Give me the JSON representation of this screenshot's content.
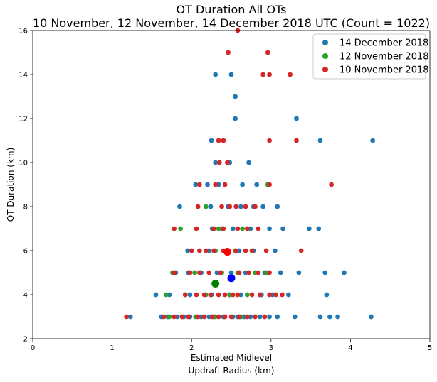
{
  "chart_data": {
    "type": "scatter",
    "title_lines": [
      "OT Duration All OTs",
      "10 November, 12 November, 14 December 2018 UTC (Count = 1022)"
    ],
    "xlabel_lines": [
      "Estimated Midlevel",
      "Updraft Radius (km)"
    ],
    "ylabel": "OT Duration (km)",
    "xlim": [
      0,
      5
    ],
    "ylim": [
      2,
      16
    ],
    "xticks": [
      0,
      1,
      2,
      3,
      4,
      5
    ],
    "yticks": [
      2,
      4,
      6,
      8,
      10,
      12,
      14,
      16
    ],
    "grid": false,
    "legend_placement": "top-right",
    "series": [
      {
        "name": "14 December 2018",
        "color": "#1f77b4",
        "x": [
          1.23,
          1.62,
          1.7,
          1.82,
          1.9,
          1.98,
          2.12,
          2.22,
          2.28,
          2.4,
          2.52,
          2.58,
          2.66,
          2.74,
          2.86,
          2.98,
          3.08,
          3.3,
          3.62,
          3.74,
          3.84,
          4.26,
          1.55,
          1.72,
          1.98,
          2.25,
          2.48,
          2.62,
          2.88,
          3.02,
          3.22,
          3.7,
          1.8,
          1.96,
          2.12,
          2.32,
          2.5,
          2.68,
          2.92,
          3.12,
          3.35,
          3.68,
          3.92,
          1.95,
          2.22,
          2.44,
          2.6,
          2.78,
          3.05,
          2.26,
          2.38,
          2.52,
          2.74,
          2.98,
          3.15,
          3.48,
          3.6,
          1.85,
          2.24,
          2.46,
          2.62,
          2.78,
          2.9,
          3.08,
          2.05,
          2.2,
          2.34,
          2.64,
          2.82,
          2.96,
          2.3,
          2.48,
          2.72,
          2.25,
          2.4,
          3.62,
          4.28,
          2.55,
          3.32,
          2.55,
          2.3,
          2.5
        ],
        "y": [
          3,
          3,
          3,
          3,
          3,
          3,
          3,
          3,
          3,
          3,
          3,
          3,
          3,
          3,
          3,
          3,
          3,
          3,
          3,
          3,
          3,
          3,
          4,
          4,
          4,
          4,
          4,
          4,
          4,
          4,
          4,
          4,
          5,
          5,
          5,
          5,
          5,
          5,
          5,
          5,
          5,
          5,
          5,
          6,
          6,
          6,
          6,
          6,
          6,
          7,
          7,
          7,
          7,
          7,
          7,
          7,
          7,
          8,
          8,
          8,
          8,
          8,
          8,
          8,
          9,
          9,
          9,
          9,
          9,
          9,
          10,
          10,
          10,
          11,
          11,
          11,
          11,
          12,
          12,
          13,
          14,
          14
        ],
        "highlight": {
          "x": 2.5,
          "y": 4.75
        }
      },
      {
        "name": "12 November 2018",
        "color": "#2ca02c",
        "x": [
          1.72,
          2.05,
          2.3,
          2.62,
          1.68,
          1.92,
          2.18,
          2.48,
          2.7,
          2.86,
          1.76,
          2.04,
          2.38,
          2.58,
          2.8,
          2.94,
          2.3,
          2.55,
          1.86,
          2.34,
          2.64,
          2.18,
          2.96
        ],
        "y": [
          3,
          3,
          3,
          3,
          4,
          4,
          4,
          4,
          4,
          4,
          5,
          5,
          5,
          5,
          5,
          5,
          6,
          6,
          7,
          7,
          7,
          8,
          9
        ],
        "highlight": {
          "x": 2.3,
          "y": 4.5
        }
      },
      {
        "name": "10 November 2018",
        "color": "#d62728",
        "x": [
          1.18,
          1.65,
          1.78,
          1.88,
          1.96,
          2.08,
          2.16,
          2.26,
          2.34,
          2.42,
          2.5,
          2.6,
          2.7,
          2.8,
          2.92,
          1.92,
          2.06,
          2.16,
          2.24,
          2.34,
          2.42,
          2.52,
          2.58,
          2.76,
          2.86,
          2.98,
          3.06,
          3.14,
          1.78,
          1.98,
          2.1,
          2.22,
          2.36,
          2.6,
          2.72,
          2.84,
          2.98,
          2.0,
          2.1,
          2.18,
          2.28,
          2.4,
          2.56,
          2.68,
          2.76,
          2.94,
          3.38,
          1.78,
          2.06,
          2.28,
          2.4,
          2.58,
          2.7,
          2.84,
          2.08,
          2.38,
          2.48,
          2.56,
          2.68,
          2.8,
          2.1,
          2.3,
          2.42,
          2.98,
          3.76,
          2.35,
          2.45,
          2.34,
          2.4,
          2.98,
          3.32,
          2.9,
          2.98,
          3.24,
          2.46,
          2.96,
          2.58
        ],
        "y": [
          3,
          3,
          3,
          3,
          3,
          3,
          3,
          3,
          3,
          3,
          3,
          3,
          3,
          3,
          3,
          4,
          4,
          4,
          4,
          4,
          4,
          4,
          4,
          4,
          4,
          4,
          4,
          4,
          5,
          5,
          5,
          5,
          5,
          5,
          5,
          5,
          5,
          6,
          6,
          6,
          6,
          6,
          6,
          6,
          6,
          6,
          6,
          7,
          7,
          7,
          7,
          7,
          7,
          7,
          8,
          8,
          8,
          8,
          8,
          8,
          9,
          9,
          9,
          9,
          9,
          10,
          10,
          11,
          11,
          11,
          11,
          14,
          14,
          14,
          15,
          15,
          16
        ],
        "highlight": {
          "x": 2.45,
          "y": 5.95
        }
      }
    ]
  }
}
